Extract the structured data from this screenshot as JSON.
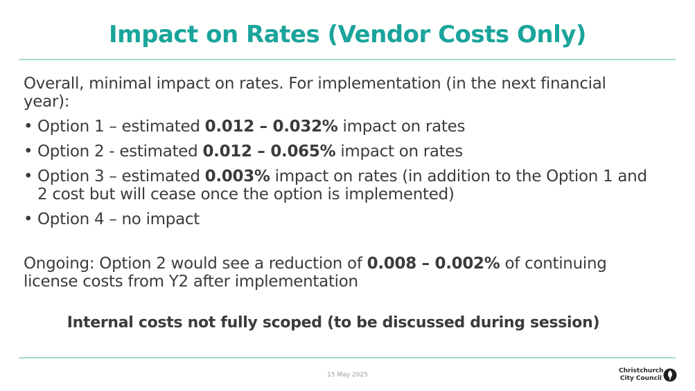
{
  "slide": {
    "title": "Impact on Rates (Vendor Costs Only)",
    "intro": "Overall, minimal impact on rates. For implementation (in the next financial year):",
    "bullets": [
      {
        "pre": "Option 1 – estimated ",
        "bold": "0.012 – 0.032%",
        "post": " impact on rates"
      },
      {
        "pre": "Option 2 - estimated ",
        "bold": "0.012 – 0.065%",
        "post": " impact on rates"
      },
      {
        "pre": "Option 3 – estimated ",
        "bold": "0.003%",
        "post": " impact on rates (in addition to the Option 1 and 2 cost but will cease once the option is implemented)"
      },
      {
        "pre": "Option 4 – no impact",
        "bold": "",
        "post": ""
      }
    ],
    "ongoing": {
      "pre": "Ongoing: Option 2 would see a reduction of ",
      "bold": "0.008 – 0.002%",
      "post": " of continuing license costs from Y2 after implementation"
    },
    "internal_note": "Internal costs not fully scoped (to be discussed during session)"
  },
  "footer": {
    "date": "15 May 2025",
    "logo_line1": "Christchurch",
    "logo_line2": "City Council",
    "logo_icon": "council-leaf-icon"
  },
  "colors": {
    "title": "#1aa49b",
    "rule": "#a5d8d3",
    "text": "#3b3b3b"
  }
}
